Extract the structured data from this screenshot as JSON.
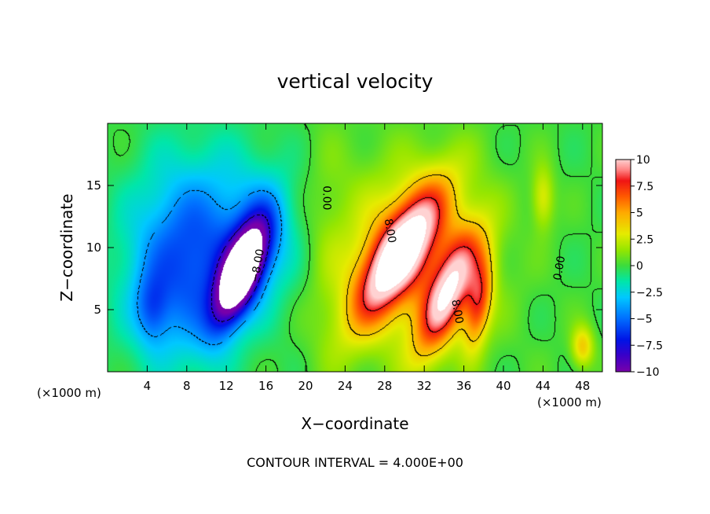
{
  "chart_data": {
    "type": "heatmap",
    "title": "vertical velocity",
    "xlabel": "X−coordinate",
    "ylabel": "Z−coordinate",
    "x_unit_left": "(×1000 m)",
    "x_unit_right": "(×1000 m)",
    "xlim": [
      0,
      50
    ],
    "ylim": [
      0,
      20
    ],
    "x_ticks": [
      4,
      8,
      12,
      16,
      20,
      24,
      28,
      32,
      36,
      40,
      44,
      48
    ],
    "y_ticks": [
      5,
      10,
      15
    ],
    "colorbar": {
      "ticks": [
        "10",
        "7.5",
        "5",
        "2.5",
        "0",
        "−2.5",
        "−5",
        "−7.5",
        "−10"
      ],
      "range": [
        -10,
        10
      ]
    },
    "contour_labels": [
      "0.00",
      "8.00",
      "−8.00",
      "8.00",
      "0.00"
    ],
    "footer": "CONTOUR INTERVAL = 4.000E+00",
    "features": [
      {
        "x": 13.5,
        "z": 8.0,
        "sx": 1.3,
        "sz": 3.2,
        "rot": 28,
        "amp": -14
      },
      {
        "x": 8.0,
        "z": 9.0,
        "sx": 4.2,
        "sz": 5.5,
        "rot": 8,
        "amp": -6
      },
      {
        "x": 4.5,
        "z": 5.0,
        "sx": 1.2,
        "sz": 2.0,
        "rot": 0,
        "amp": -3
      },
      {
        "x": 15.5,
        "z": 11.0,
        "sx": 3.0,
        "sz": 4.0,
        "rot": 0,
        "amp": -3
      },
      {
        "x": 29.5,
        "z": 9.5,
        "sx": 1.7,
        "sz": 4.6,
        "rot": 38,
        "amp": 11
      },
      {
        "x": 34.5,
        "z": 6.5,
        "sx": 1.4,
        "sz": 3.8,
        "rot": 28,
        "amp": 9
      },
      {
        "x": 37.5,
        "z": 5.5,
        "sx": 0.9,
        "sz": 2.6,
        "rot": 10,
        "amp": 6
      },
      {
        "x": 30.5,
        "z": 9.0,
        "sx": 5.5,
        "sz": 5.2,
        "rot": 20,
        "amp": 4
      },
      {
        "x": 44.0,
        "z": 14.0,
        "sx": 0.8,
        "sz": 1.8,
        "rot": 0,
        "amp": 3
      },
      {
        "x": 48.0,
        "z": 2.0,
        "sx": 0.8,
        "sz": 1.2,
        "rot": 0,
        "amp": 4
      },
      {
        "x": 22.0,
        "z": 10.0,
        "sx": 1.5,
        "sz": 8.0,
        "rot": 0,
        "amp": 0.6
      }
    ]
  }
}
